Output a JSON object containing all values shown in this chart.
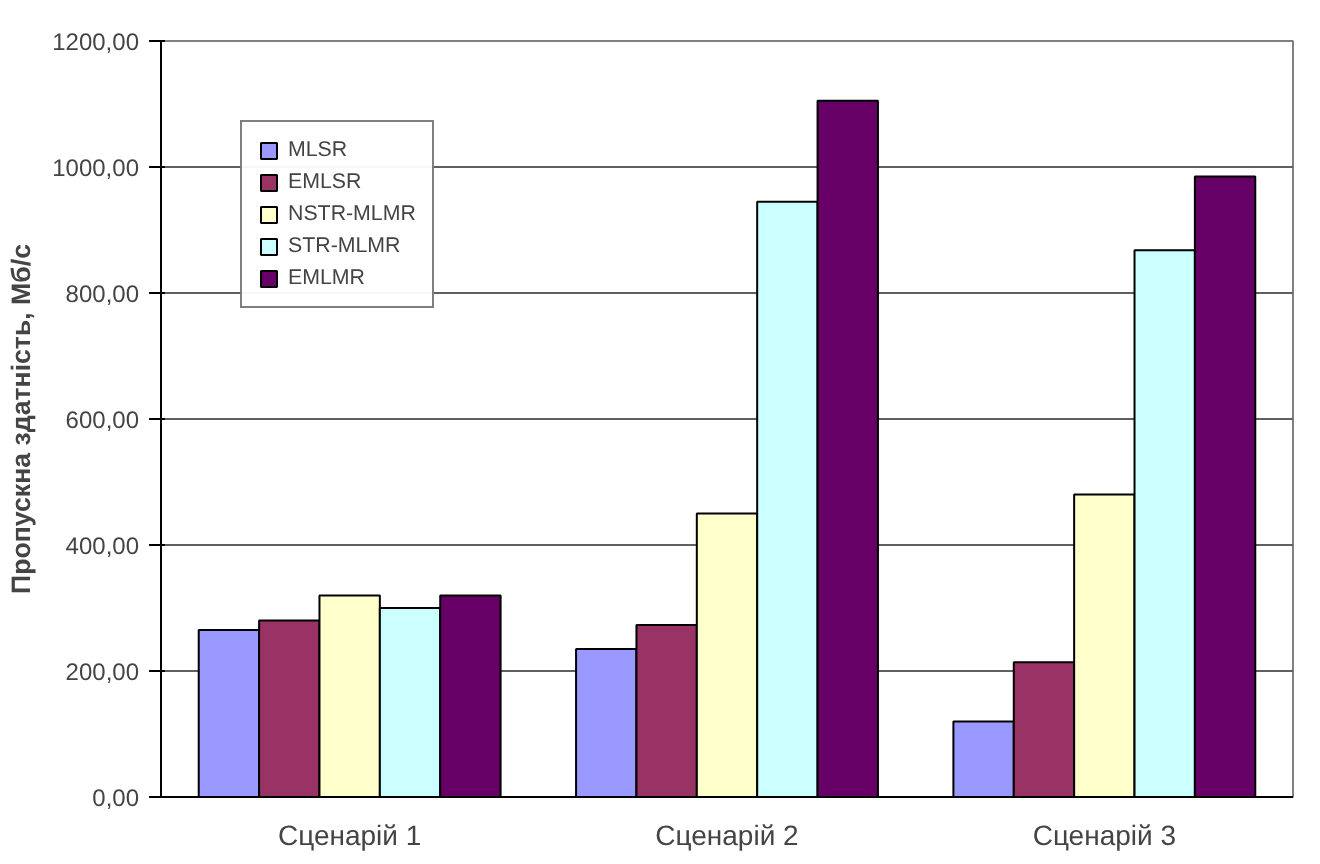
{
  "chart_data": {
    "type": "bar",
    "ylabel": "Пропускна здатність, Мб/с",
    "categories": [
      "Сценарій 1",
      "Сценарій 2",
      "Сценарій 3"
    ],
    "series": [
      {
        "name": "MLSR",
        "color": "#9999ff",
        "values": [
          265,
          235,
          120
        ]
      },
      {
        "name": "EMLSR",
        "color": "#993366",
        "values": [
          280,
          273,
          214
        ]
      },
      {
        "name": "NSTR-MLMR",
        "color": "#ffffcc",
        "values": [
          320,
          450,
          480
        ]
      },
      {
        "name": "STR-MLMR",
        "color": "#ccffff",
        "values": [
          300,
          945,
          868
        ]
      },
      {
        "name": "EMLMR",
        "color": "#660066",
        "values": [
          320,
          1105,
          985
        ]
      }
    ],
    "ylim": [
      0,
      1200
    ],
    "yticks": [
      {
        "value": 0,
        "label": "0,00"
      },
      {
        "value": 200,
        "label": "200,00"
      },
      {
        "value": 400,
        "label": "400,00"
      },
      {
        "value": 600,
        "label": "600,00"
      },
      {
        "value": 800,
        "label": "800,00"
      },
      {
        "value": 1000,
        "label": "1000,00"
      },
      {
        "value": 1200,
        "label": "1200,00"
      }
    ],
    "grid": "y",
    "legend": "top left"
  }
}
